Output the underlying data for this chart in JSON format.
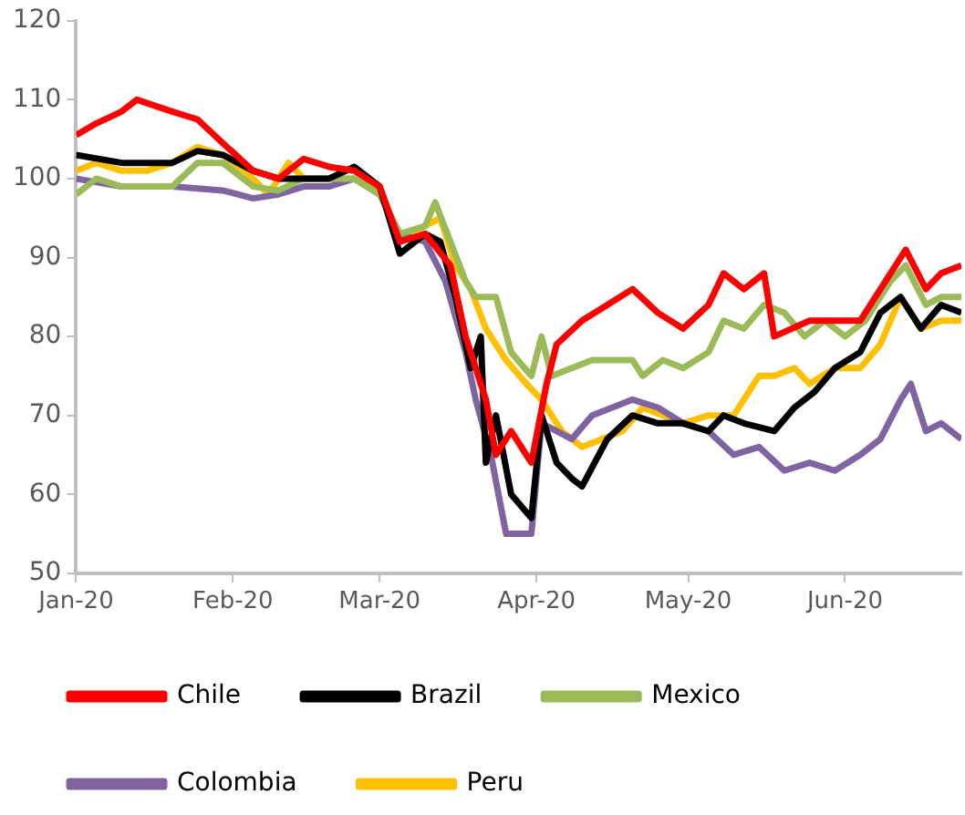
{
  "chart_data": {
    "type": "line",
    "grid": false,
    "legend": "bottom",
    "marker": "none",
    "line_style": "solid",
    "ylim": [
      50,
      120
    ],
    "yticks": [
      50,
      60,
      70,
      80,
      90,
      100,
      110,
      120
    ],
    "xlim": [
      "2020-01-01",
      "2020-06-24"
    ],
    "xticks": [
      {
        "value": "2020-01-01",
        "label": "Jan-20"
      },
      {
        "value": "2020-02-01",
        "label": "Feb-20"
      },
      {
        "value": "2020-03-01",
        "label": "Mar-20"
      },
      {
        "value": "2020-04-01",
        "label": "Apr-20"
      },
      {
        "value": "2020-05-01",
        "label": "May-20"
      },
      {
        "value": "2020-06-01",
        "label": "Jun-20"
      }
    ],
    "series": [
      {
        "name": "Chile",
        "color": "#ff0000",
        "x": [
          "2020-01-01",
          "2020-01-05",
          "2020-01-10",
          "2020-01-13",
          "2020-01-20",
          "2020-01-25",
          "2020-01-30",
          "2020-02-05",
          "2020-02-10",
          "2020-02-15",
          "2020-02-20",
          "2020-02-25",
          "2020-03-01",
          "2020-03-05",
          "2020-03-10",
          "2020-03-15",
          "2020-03-18",
          "2020-03-22",
          "2020-03-24",
          "2020-03-27",
          "2020-03-31",
          "2020-04-03",
          "2020-04-05",
          "2020-04-10",
          "2020-04-15",
          "2020-04-20",
          "2020-04-25",
          "2020-04-30",
          "2020-05-05",
          "2020-05-08",
          "2020-05-12",
          "2020-05-16",
          "2020-05-18",
          "2020-05-25",
          "2020-05-30",
          "2020-06-04",
          "2020-06-10",
          "2020-06-13",
          "2020-06-17",
          "2020-06-20",
          "2020-06-24"
        ],
        "values": [
          105.5,
          107,
          108.5,
          110,
          108.5,
          107.5,
          104.5,
          101,
          100,
          102.5,
          101.5,
          101,
          99,
          92,
          93,
          89,
          80,
          72,
          65,
          68,
          64,
          74,
          79,
          82,
          84,
          86,
          83,
          81,
          84,
          88,
          86,
          88,
          80,
          82,
          82,
          82,
          88,
          91,
          86,
          88,
          89
        ]
      },
      {
        "name": "Brazil",
        "color": "#000000",
        "x": [
          "2020-01-01",
          "2020-01-10",
          "2020-01-20",
          "2020-01-25",
          "2020-01-30",
          "2020-02-05",
          "2020-02-10",
          "2020-02-15",
          "2020-02-20",
          "2020-02-25",
          "2020-03-01",
          "2020-03-05",
          "2020-03-10",
          "2020-03-13",
          "2020-03-16",
          "2020-03-19",
          "2020-03-21",
          "2020-03-22",
          "2020-03-24",
          "2020-03-27",
          "2020-03-31",
          "2020-04-02",
          "2020-04-05",
          "2020-04-08",
          "2020-04-10",
          "2020-04-15",
          "2020-04-20",
          "2020-04-25",
          "2020-04-30",
          "2020-05-05",
          "2020-05-08",
          "2020-05-12",
          "2020-05-18",
          "2020-05-22",
          "2020-05-26",
          "2020-05-30",
          "2020-06-04",
          "2020-06-08",
          "2020-06-12",
          "2020-06-16",
          "2020-06-20",
          "2020-06-24"
        ],
        "values": [
          103,
          102,
          102,
          103.5,
          103,
          101,
          100,
          100,
          100,
          101.5,
          99,
          90.5,
          93,
          92,
          85,
          76,
          80,
          64,
          70,
          60,
          57,
          70,
          64,
          62,
          61,
          67,
          70,
          69,
          69,
          68,
          70,
          69,
          68,
          71,
          73,
          76,
          78,
          83,
          85,
          81,
          84,
          83
        ]
      },
      {
        "name": "Mexico",
        "color": "#9bbb59",
        "x": [
          "2020-01-01",
          "2020-01-05",
          "2020-01-10",
          "2020-01-20",
          "2020-01-25",
          "2020-01-30",
          "2020-02-05",
          "2020-02-10",
          "2020-02-15",
          "2020-02-20",
          "2020-02-25",
          "2020-03-01",
          "2020-03-05",
          "2020-03-10",
          "2020-03-12",
          "2020-03-15",
          "2020-03-18",
          "2020-03-20",
          "2020-03-24",
          "2020-03-27",
          "2020-03-31",
          "2020-04-02",
          "2020-04-04",
          "2020-04-08",
          "2020-04-12",
          "2020-04-16",
          "2020-04-20",
          "2020-04-22",
          "2020-04-26",
          "2020-04-30",
          "2020-05-05",
          "2020-05-08",
          "2020-05-12",
          "2020-05-16",
          "2020-05-20",
          "2020-05-24",
          "2020-05-28",
          "2020-06-01",
          "2020-06-05",
          "2020-06-10",
          "2020-06-13",
          "2020-06-17",
          "2020-06-20",
          "2020-06-24"
        ],
        "values": [
          98,
          100,
          99,
          99,
          102,
          102,
          99,
          98.5,
          100,
          100,
          100,
          98,
          93,
          94,
          97,
          92,
          87,
          85,
          85,
          78,
          75,
          80,
          75,
          76,
          77,
          77,
          77,
          75,
          77,
          76,
          78,
          82,
          81,
          84,
          83,
          80,
          82,
          80,
          82,
          87,
          89,
          84,
          85,
          85
        ]
      },
      {
        "name": "Colombia",
        "color": "#8064a2",
        "x": [
          "2020-01-01",
          "2020-01-10",
          "2020-01-20",
          "2020-01-30",
          "2020-02-05",
          "2020-02-10",
          "2020-02-15",
          "2020-02-20",
          "2020-02-25",
          "2020-03-01",
          "2020-03-05",
          "2020-03-10",
          "2020-03-14",
          "2020-03-18",
          "2020-03-20",
          "2020-03-23",
          "2020-03-26",
          "2020-03-28",
          "2020-03-31",
          "2020-04-02",
          "2020-04-05",
          "2020-04-08",
          "2020-04-12",
          "2020-04-16",
          "2020-04-20",
          "2020-04-25",
          "2020-04-30",
          "2020-05-05",
          "2020-05-10",
          "2020-05-15",
          "2020-05-20",
          "2020-05-25",
          "2020-05-30",
          "2020-06-04",
          "2020-06-08",
          "2020-06-12",
          "2020-06-14",
          "2020-06-17",
          "2020-06-20",
          "2020-06-24"
        ],
        "values": [
          100,
          99,
          99,
          98.5,
          97.5,
          98,
          99,
          99,
          100,
          98,
          93,
          92,
          87,
          78,
          72,
          65,
          55,
          55,
          55,
          69,
          68,
          67,
          70,
          71,
          72,
          71,
          69,
          68,
          65,
          66,
          63,
          64,
          63,
          65,
          67,
          72,
          74,
          68,
          69,
          67
        ]
      },
      {
        "name": "Peru",
        "color": "#ffc000",
        "x": [
          "2020-01-01",
          "2020-01-05",
          "2020-01-10",
          "2020-01-15",
          "2020-01-20",
          "2020-01-25",
          "2020-01-30",
          "2020-02-05",
          "2020-02-08",
          "2020-02-12",
          "2020-02-15",
          "2020-02-20",
          "2020-02-25",
          "2020-03-01",
          "2020-03-05",
          "2020-03-10",
          "2020-03-13",
          "2020-03-16",
          "2020-03-19",
          "2020-03-22",
          "2020-03-26",
          "2020-03-30",
          "2020-04-02",
          "2020-04-06",
          "2020-04-10",
          "2020-04-14",
          "2020-04-18",
          "2020-04-22",
          "2020-04-26",
          "2020-04-30",
          "2020-05-05",
          "2020-05-10",
          "2020-05-15",
          "2020-05-18",
          "2020-05-22",
          "2020-05-25",
          "2020-05-30",
          "2020-06-04",
          "2020-06-08",
          "2020-06-12",
          "2020-06-16",
          "2020-06-20",
          "2020-06-24"
        ],
        "values": [
          101,
          102,
          101,
          101,
          102,
          104,
          103,
          100,
          98,
          102,
          100,
          100,
          100,
          99,
          92,
          94,
          95,
          89,
          86,
          81,
          77,
          74,
          72,
          68,
          66,
          67,
          68,
          71,
          70,
          69,
          70,
          70,
          75,
          75,
          76,
          74,
          76,
          76,
          79,
          85,
          81,
          82,
          82
        ]
      }
    ]
  }
}
